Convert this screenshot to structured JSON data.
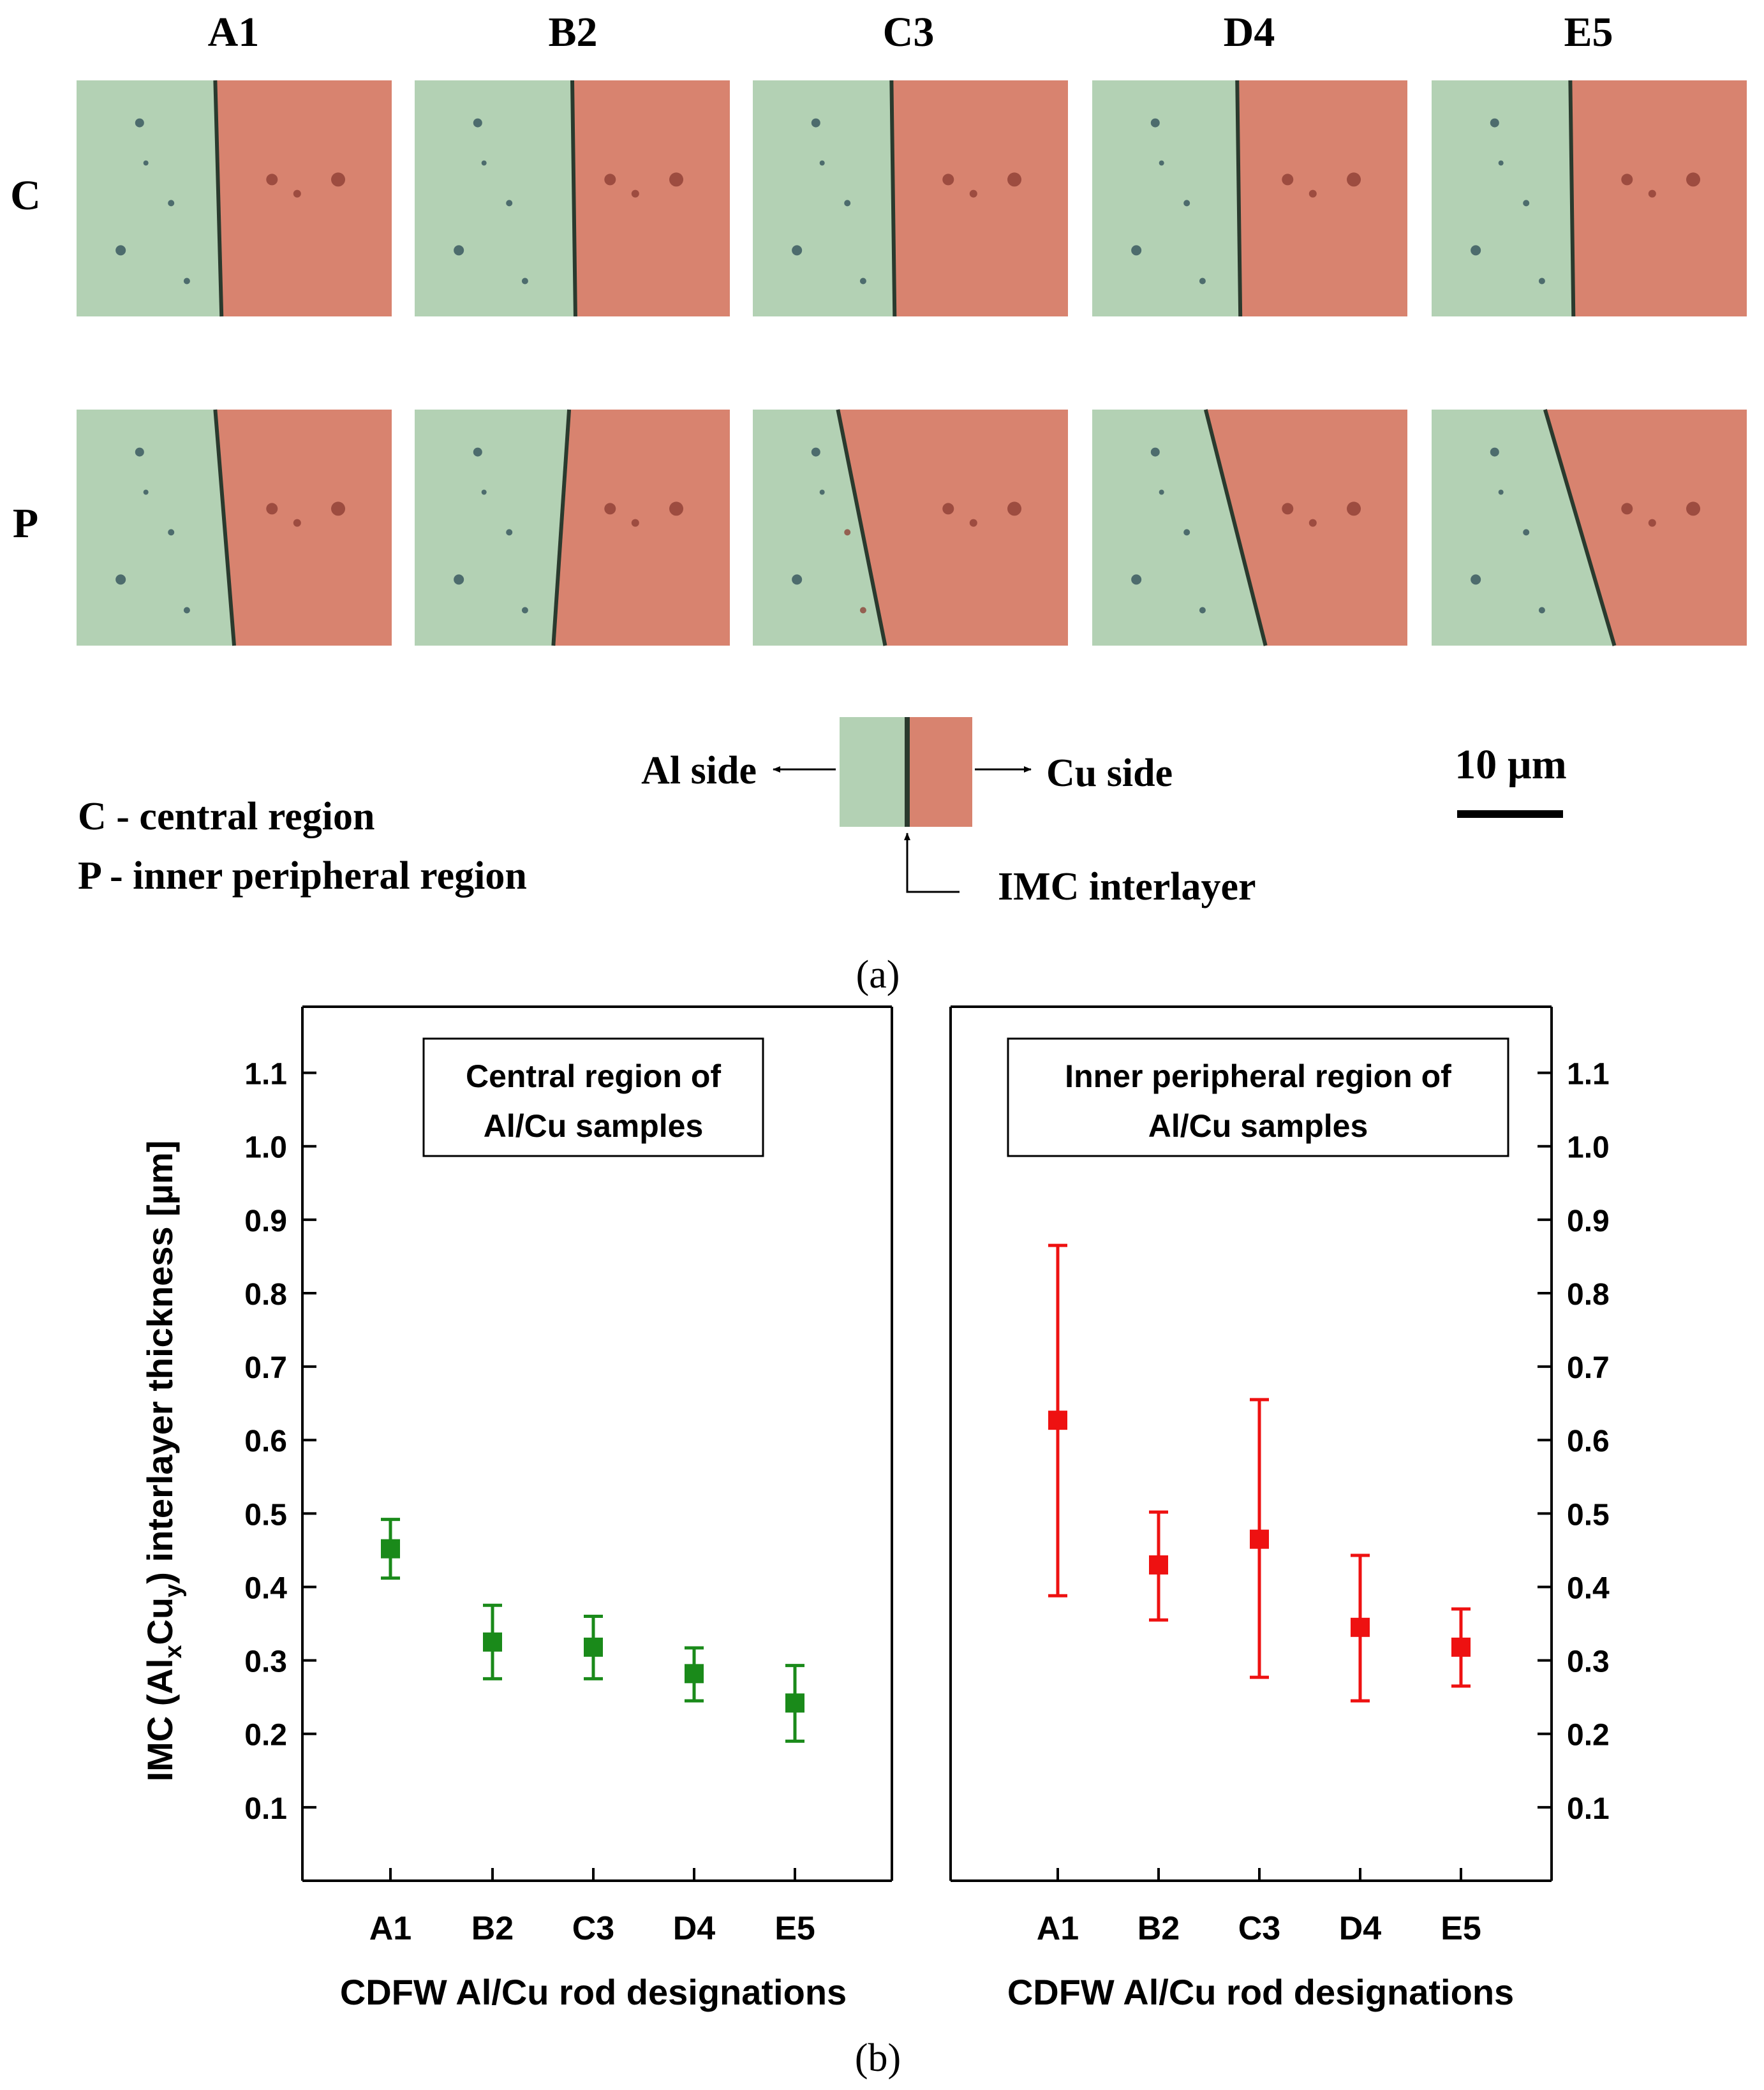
{
  "panel_a": {
    "columns": [
      "A1",
      "B2",
      "C3",
      "D4",
      "E5"
    ],
    "rows": [
      {
        "code": "C",
        "description": "central region"
      },
      {
        "code": "P",
        "description": "inner peripheral region"
      }
    ],
    "legend_c": "C - central region",
    "legend_p": "P - inner peripheral region",
    "al_side": "Al side",
    "cu_side": "Cu side",
    "imc_label": "IMC interlayer",
    "scale_bar": "10 µm",
    "caption": "(a)",
    "colors": {
      "al": "#b3d1b4",
      "cu": "#d8836f",
      "interface": "#2a3a2e"
    }
  },
  "chart_data": {
    "type": "scatter",
    "title": "",
    "ylabel": "IMC (AlxCuy) interlayer thickness [µm]",
    "ylabel_parts": {
      "pre": "IMC (Al",
      "sub1": "x",
      "mid": "Cu",
      "sub2": "y",
      "post": ") interlayer thickness [µm]"
    },
    "xlabel": "CDFW Al/Cu rod designations",
    "ylim": [
      0,
      1.19
    ],
    "yticks": [
      "0.1",
      "0.2",
      "0.3",
      "0.4",
      "0.5",
      "0.6",
      "0.7",
      "0.8",
      "0.9",
      "1.0",
      "1.1"
    ],
    "categories": [
      "A1",
      "B2",
      "C3",
      "D4",
      "E5"
    ],
    "caption": "(b)",
    "series": [
      {
        "name": "Central region",
        "legend": [
          "Central region of",
          "Al/Cu samples"
        ],
        "color": "#1a8a1a",
        "values": [
          0.452,
          0.325,
          0.318,
          0.282,
          0.242
        ],
        "err_low": [
          0.412,
          0.275,
          0.275,
          0.245,
          0.19
        ],
        "err_high": [
          0.492,
          0.375,
          0.36,
          0.317,
          0.293
        ]
      },
      {
        "name": "Inner peripheral region",
        "legend": [
          "Inner peripheral region of",
          "Al/Cu samples"
        ],
        "color": "#ee1111",
        "values": [
          0.627,
          0.43,
          0.465,
          0.345,
          0.318
        ],
        "err_low": [
          0.388,
          0.355,
          0.277,
          0.245,
          0.265
        ],
        "err_high": [
          0.865,
          0.502,
          0.655,
          0.443,
          0.37
        ]
      }
    ]
  }
}
